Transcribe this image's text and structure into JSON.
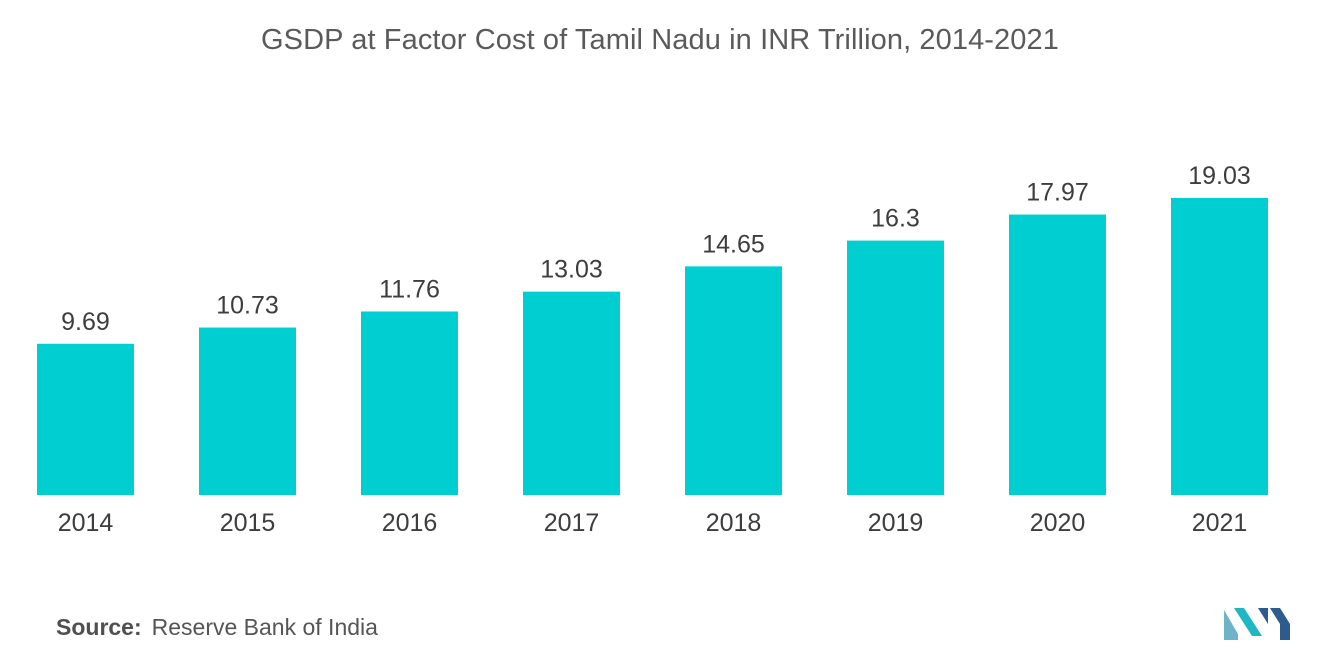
{
  "chart_data": {
    "type": "bar",
    "title": "GSDP at Factor Cost of Tamil Nadu in INR Trillion, 2014-2021",
    "categories": [
      "2014",
      "2015",
      "2016",
      "2017",
      "2018",
      "2019",
      "2020",
      "2021"
    ],
    "values": [
      9.69,
      10.73,
      11.76,
      13.03,
      14.65,
      16.3,
      17.97,
      19.03
    ],
    "value_labels": [
      "9.69",
      "10.73",
      "11.76",
      "13.03",
      "14.65",
      "16.3",
      "17.97",
      "19.03"
    ],
    "xlabel": "",
    "ylabel": "",
    "ylim": [
      0,
      19.03
    ],
    "grid": false,
    "legend": "none",
    "bar_color": "#00CED1"
  },
  "source": {
    "key": "Source:",
    "text": "Reserve Bank of India"
  },
  "logo": {
    "icon": "mordor-intelligence-logo-icon",
    "colors": [
      "#6fb3c9",
      "#1fb7c3",
      "#2d5b8e"
    ]
  }
}
